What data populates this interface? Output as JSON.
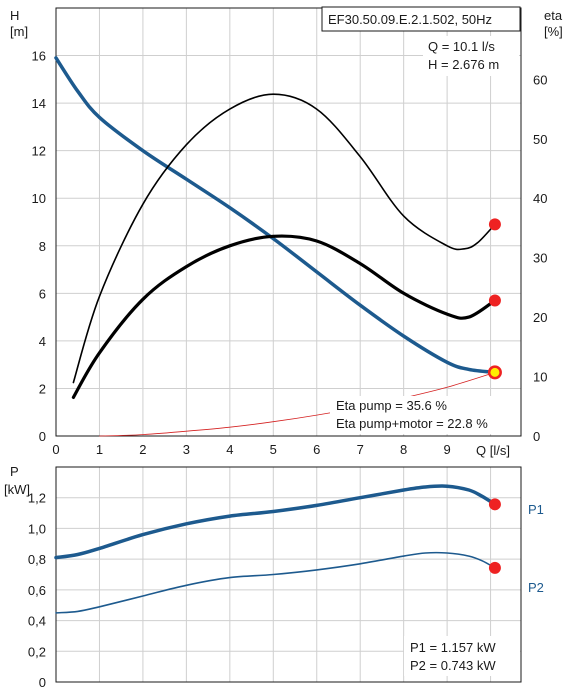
{
  "model": "EF30.50.09.E.2.1.502, 50Hz",
  "duty": {
    "q_text": "Q = 10.1 l/s",
    "h_text": "H = 2.676 m"
  },
  "efficiency": {
    "pump_text": "Eta pump = 35.6 %",
    "total_text": "Eta pump+motor = 22.8 %"
  },
  "power": {
    "p1_text": "P1 = 1.157 kW",
    "p2_text": "P2 = 0.743 kW"
  },
  "axes": {
    "h_title": "H",
    "h_unit": "[m]",
    "eta_title": "eta",
    "eta_unit": "[%]",
    "p_title": "P",
    "p_unit": "[kW]",
    "q_label": "Q [l/s]"
  },
  "colors": {
    "curve_blue": "#1d5a8e",
    "eta_black": "#000000",
    "duty_red": "#ee2222",
    "system_red": "#d42020",
    "duty_fill": "#ffee00"
  },
  "chart_data": [
    {
      "type": "line",
      "title": "",
      "xlabel": "Q [l/s]",
      "ylabel": "H [m]",
      "y2label": "eta [%]",
      "xlim": [
        0,
        10.7
      ],
      "ylim": [
        0,
        18
      ],
      "y2lim": [
        0,
        72
      ],
      "grid": true,
      "x_ticks": [
        "0",
        "1",
        "2",
        "3",
        "4",
        "5",
        "6",
        "7",
        "8",
        "9"
      ],
      "y_ticks": [
        "0",
        "2",
        "4",
        "6",
        "8",
        "10",
        "12",
        "14",
        "16"
      ],
      "y2_ticks": [
        "0",
        "10",
        "20",
        "30",
        "40",
        "50",
        "60"
      ],
      "series": [
        {
          "axis": "H",
          "x": [
            0,
            0.5,
            1,
            2,
            3,
            4,
            5,
            6,
            7,
            8,
            9,
            9.5,
            10.1
          ],
          "values": [
            15.9,
            14.5,
            13.4,
            12.0,
            10.8,
            9.6,
            8.3,
            6.9,
            5.5,
            4.2,
            3.1,
            2.8,
            2.676
          ]
        },
        {
          "axis": "eta",
          "x": [
            0.4,
            1,
            2,
            3,
            4,
            5,
            6,
            7,
            8,
            9,
            9.4,
            9.7,
            10.1
          ],
          "values": [
            9,
            23.5,
            39,
            49,
            55,
            57.5,
            55,
            47,
            37,
            32,
            31.5,
            32.5,
            35.6
          ]
        },
        {
          "axis": "eta",
          "x": [
            0.4,
            1,
            2,
            3,
            4,
            5,
            6,
            7,
            8,
            9,
            9.5,
            10.1
          ],
          "values": [
            6.5,
            14,
            23,
            28.5,
            32,
            33.6,
            32.8,
            29,
            24,
            20.5,
            20,
            22.8
          ]
        },
        {
          "axis": "H",
          "x": [
            1,
            2,
            3,
            4,
            5,
            6,
            7,
            8,
            9,
            10.1
          ],
          "values": [
            0,
            0.06,
            0.2,
            0.37,
            0.6,
            0.88,
            1.2,
            1.6,
            2.05,
            2.676
          ]
        }
      ],
      "markers": [
        {
          "x": 10.1,
          "y": 2.676,
          "axis": "H",
          "highlight": true
        },
        {
          "x": 10.1,
          "y": 35.6,
          "axis": "eta"
        },
        {
          "x": 10.1,
          "y": 22.8,
          "axis": "eta"
        }
      ]
    },
    {
      "type": "line",
      "title": "",
      "ylabel": "P [kW]",
      "xlim": [
        0,
        10.7
      ],
      "ylim": [
        0,
        1.4
      ],
      "grid": true,
      "y_ticks": [
        "0",
        "0,2",
        "0,4",
        "0,6",
        "0,8",
        "1,0",
        "1,2"
      ],
      "series": [
        {
          "name": "P1",
          "x": [
            0,
            0.5,
            1,
            2,
            3,
            4,
            5,
            6,
            7,
            8,
            8.5,
            9,
            9.5,
            9.8,
            10.1
          ],
          "values": [
            0.81,
            0.83,
            0.87,
            0.96,
            1.03,
            1.08,
            1.11,
            1.15,
            1.2,
            1.25,
            1.27,
            1.275,
            1.25,
            1.21,
            1.157
          ]
        },
        {
          "name": "P2",
          "x": [
            0,
            0.5,
            1,
            2,
            3,
            4,
            5,
            6,
            7,
            8,
            8.5,
            9,
            9.5,
            9.8,
            10.1
          ],
          "values": [
            0.45,
            0.46,
            0.49,
            0.56,
            0.63,
            0.68,
            0.7,
            0.73,
            0.77,
            0.82,
            0.84,
            0.84,
            0.82,
            0.79,
            0.743
          ]
        }
      ],
      "markers": [
        {
          "x": 10.1,
          "y": 1.157
        },
        {
          "x": 10.1,
          "y": 0.743
        }
      ]
    }
  ]
}
